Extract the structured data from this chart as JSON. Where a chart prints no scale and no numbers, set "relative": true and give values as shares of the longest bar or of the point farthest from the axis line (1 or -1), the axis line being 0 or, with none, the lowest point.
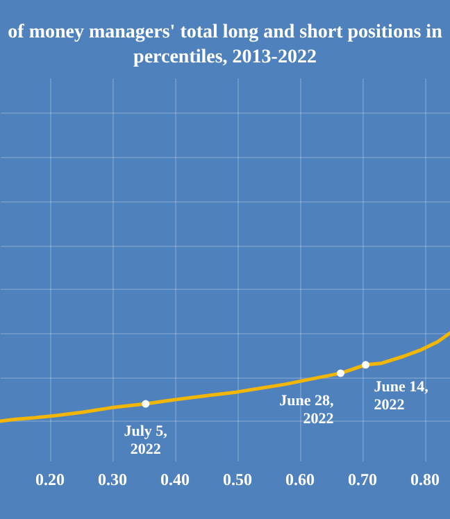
{
  "chart_data": {
    "type": "line",
    "title": "of money managers' total long and short positions in\npercentiles, 2013-2022",
    "x": [
      0.121,
      0.143,
      0.177,
      0.21,
      0.254,
      0.299,
      0.354,
      0.399,
      0.454,
      0.499,
      0.543,
      0.577,
      0.621,
      0.666,
      0.706,
      0.732,
      0.766,
      0.795,
      0.821,
      0.841
    ],
    "series": [
      {
        "color": "#f2b705",
        "values": [
          0,
          0.019,
          0.038,
          0.063,
          0.101,
          0.152,
          0.196,
          0.241,
          0.291,
          0.329,
          0.38,
          0.418,
          0.481,
          0.544,
          0.639,
          0.658,
          0.734,
          0.81,
          0.899,
          1
        ]
      }
    ],
    "relative": true,
    "xlim": [
      0.121,
      0.841
    ],
    "xticks": [
      {
        "value": 0.2,
        "label": "0.20"
      },
      {
        "value": 0.3,
        "label": "0.30"
      },
      {
        "value": 0.4,
        "label": "0.40"
      },
      {
        "value": 0.5,
        "label": "0.50"
      },
      {
        "value": 0.6,
        "label": "0.60"
      },
      {
        "value": 0.7,
        "label": "0.70"
      },
      {
        "value": 0.8,
        "label": "0.80"
      }
    ],
    "grid": true,
    "annotations": [
      {
        "text": "July 5,\n2022",
        "x": 0.354,
        "y": 0.196
      },
      {
        "text": "June 28,\n2022",
        "x": 0.666,
        "y": 0.544
      },
      {
        "text": "June 14,\n2022",
        "x": 0.706,
        "y": 0.639
      }
    ]
  }
}
